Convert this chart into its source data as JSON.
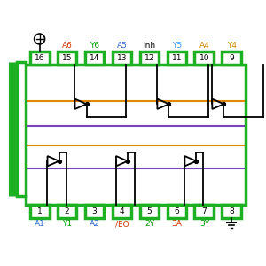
{
  "bg_color": "#ffffff",
  "chip_color": "#1db022",
  "chip_lw": 2.5,
  "top_pins": [
    16,
    15,
    14,
    13,
    12,
    11,
    10,
    9
  ],
  "bot_pins": [
    1,
    2,
    3,
    4,
    5,
    6,
    7,
    8
  ],
  "top_labels": [
    "",
    "A6",
    "Y6",
    "A5",
    "Inh",
    "Y5",
    "A4",
    "Y4"
  ],
  "bot_labels": [
    "A1",
    "Y1",
    "A2",
    "/EO",
    "2Y",
    "3A",
    "3Y",
    ""
  ],
  "top_label_colors": [
    "#000000",
    "#cc3300",
    "#009900",
    "#3366cc",
    "#000000",
    "#3399ff",
    "#cc8800",
    "#cc8800"
  ],
  "bot_label_colors": [
    "#3366cc",
    "#009900",
    "#3366cc",
    "#cc3300",
    "#009900",
    "#cc3300",
    "#009900",
    "#000000"
  ],
  "orange": "#e08800",
  "purple": "#7744bb",
  "black": "#000000",
  "green": "#1db022"
}
